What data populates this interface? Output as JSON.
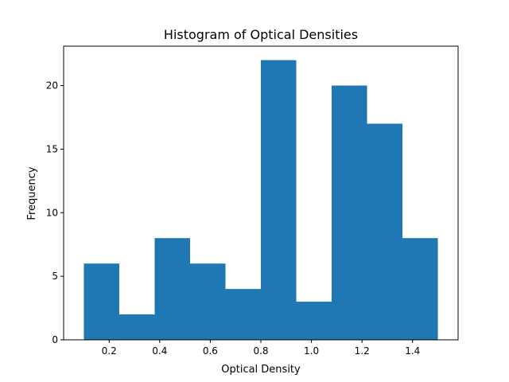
{
  "chart_data": {
    "type": "bar",
    "subtype": "histogram",
    "title": "Histogram of Optical Densities",
    "xlabel": "Optical Density",
    "ylabel": "Frequency",
    "bin_edges": [
      0.1,
      0.24,
      0.38,
      0.52,
      0.66,
      0.8,
      0.94,
      1.08,
      1.22,
      1.36,
      1.5
    ],
    "values": [
      6,
      2,
      8,
      6,
      4,
      22,
      3,
      20,
      17,
      8
    ],
    "xlim": [
      0.02,
      1.58
    ],
    "ylim": [
      0,
      23.1
    ],
    "xticks": [
      0.2,
      0.4,
      0.6,
      0.8,
      1.0,
      1.2,
      1.4
    ],
    "xtick_labels": [
      "0.2",
      "0.4",
      "0.6",
      "0.8",
      "1.0",
      "1.2",
      "1.4"
    ],
    "yticks": [
      0,
      5,
      10,
      15,
      20
    ],
    "ytick_labels": [
      "0",
      "5",
      "10",
      "15",
      "20"
    ],
    "bar_color": "#1f77b4",
    "grid": false,
    "legend": "none"
  }
}
